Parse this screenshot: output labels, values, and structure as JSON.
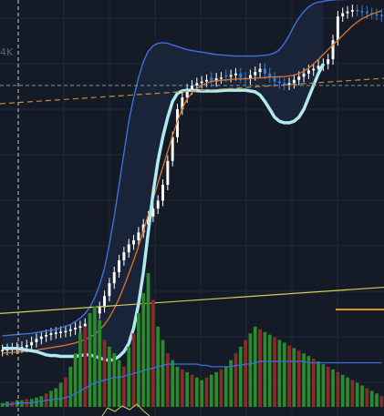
{
  "chart_data": {
    "type": "candlestick",
    "grid": true,
    "colors": {
      "background": "#141a26",
      "grid": "#222a38",
      "candle_up": "#ffffff",
      "candle_down": "#3a7bd5",
      "bollinger_upper": "#3f6fe0",
      "bollinger_fill": "#1d2a40",
      "moving_average": "#e0752a",
      "dashed_level": "#c98a2e",
      "price_line": "#d8cc5a",
      "lower_envelope": "#aeeaf0",
      "volume_up": "#2b8a2b",
      "volume_down": "#8a2b2b",
      "volume_ma": "#3a6fe0",
      "crosshair": "#c8c8c8",
      "tag": "#d9962a"
    },
    "y_axis_tick_labels": [
      "4K"
    ],
    "y_range": [
      -100,
      4380
    ],
    "candles": {
      "close": [
        20,
        30,
        40,
        50,
        60,
        80,
        120,
        160,
        190,
        210,
        230,
        240,
        250,
        260,
        280,
        300,
        320,
        350,
        400,
        480,
        560,
        700,
        860,
        1000,
        1150,
        1250,
        1350,
        1400,
        1500,
        1600,
        1700,
        1800,
        1900,
        2100,
        2400,
        2700,
        3050,
        3200,
        3300,
        3350,
        3380,
        3400,
        3420,
        3400,
        3440,
        3450,
        3460,
        3480,
        3500,
        3450,
        3430,
        3480,
        3520,
        3560,
        3500,
        3450,
        3400,
        3380,
        3360,
        3380,
        3420,
        3460,
        3500,
        3540,
        3560,
        3600,
        3620,
        3680,
        3920,
        4220,
        4260,
        4280,
        4300,
        4290,
        4280,
        4260,
        4250,
        4240,
        4220
      ],
      "open": [
        10,
        20,
        30,
        40,
        50,
        60,
        80,
        120,
        160,
        190,
        210,
        230,
        240,
        250,
        260,
        280,
        300,
        320,
        350,
        400,
        480,
        560,
        700,
        860,
        1000,
        1150,
        1250,
        1350,
        1400,
        1500,
        1600,
        1700,
        1800,
        1900,
        2100,
        2400,
        2700,
        3050,
        3200,
        3300,
        3350,
        3380,
        3400,
        3450,
        3400,
        3440,
        3480,
        3460,
        3480,
        3500,
        3450,
        3430,
        3480,
        3520,
        3560,
        3500,
        3450,
        3400,
        3380,
        3360,
        3380,
        3420,
        3460,
        3500,
        3540,
        3560,
        3600,
        3620,
        3680,
        3920,
        4220,
        4260,
        4280,
        4300,
        4290,
        4280,
        4260,
        4250,
        4240
      ]
    },
    "bollinger_upper": [
      200,
      205,
      210,
      215,
      220,
      225,
      230,
      240,
      250,
      260,
      270,
      280,
      300,
      320,
      340,
      380,
      420,
      480,
      560,
      680,
      840,
      1050,
      1350,
      1700,
      2100,
      2500,
      2900,
      3200,
      3450,
      3650,
      3780,
      3850,
      3880,
      3890,
      3880,
      3860,
      3840,
      3820,
      3800,
      3790,
      3780,
      3770,
      3760,
      3750,
      3740,
      3735,
      3730,
      3725,
      3720,
      3720,
      3720,
      3720,
      3720,
      3725,
      3730,
      3740,
      3760,
      3800,
      3880,
      3980,
      4100,
      4200,
      4280,
      4340,
      4380,
      4400,
      4410,
      4420,
      4425,
      4430,
      4432,
      4434,
      4436,
      4438,
      4440,
      4440,
      4440,
      4440,
      4440
    ],
    "moving_average": [
      -20,
      -15,
      -10,
      -5,
      0,
      5,
      10,
      20,
      30,
      40,
      50,
      60,
      70,
      80,
      95,
      110,
      130,
      150,
      180,
      220,
      270,
      340,
      430,
      540,
      670,
      820,
      980,
      1150,
      1330,
      1520,
      1720,
      1920,
      2120,
      2320,
      2520,
      2720,
      2900,
      3060,
      3180,
      3260,
      3310,
      3350,
      3380,
      3400,
      3410,
      3415,
      3420,
      3425,
      3430,
      3432,
      3434,
      3436,
      3440,
      3445,
      3450,
      3455,
      3458,
      3460,
      3462,
      3470,
      3480,
      3500,
      3530,
      3570,
      3620,
      3680,
      3740,
      3800,
      3860,
      3920,
      3980,
      4040,
      4100,
      4150,
      4190,
      4220,
      4250,
      4270,
      4290
    ],
    "lower_envelope": [
      40,
      40,
      40,
      40,
      30,
      20,
      10,
      0,
      -20,
      -40,
      -50,
      -50,
      -60,
      -60,
      -60,
      -60,
      -50,
      -40,
      -40,
      -60,
      -80,
      -100,
      -110,
      -100,
      -60,
      0,
      100,
      300,
      600,
      1000,
      1500,
      2000,
      2400,
      2700,
      2950,
      3150,
      3250,
      3280,
      3290,
      3290,
      3285,
      3280,
      3280,
      3280,
      3280,
      3285,
      3290,
      3290,
      3290,
      3290,
      3290,
      3280,
      3270,
      3230,
      3150,
      3050,
      2950,
      2900,
      2880,
      2880,
      2900,
      2950,
      3050,
      3200,
      3350,
      3500,
      3620
    ],
    "dashed_level": {
      "start": 3120,
      "end": 3440
    },
    "dashed_level_tag": 3350,
    "price_line": {
      "start": 480,
      "end": 810
    },
    "volume": {
      "values": [
        3,
        4,
        4,
        5,
        5,
        6,
        6,
        7,
        8,
        10,
        12,
        14,
        18,
        22,
        30,
        40,
        55,
        60,
        70,
        75,
        65,
        50,
        45,
        40,
        35,
        30,
        45,
        55,
        70,
        85,
        100,
        80,
        60,
        50,
        40,
        35,
        30,
        28,
        26,
        24,
        22,
        20,
        22,
        24,
        26,
        28,
        30,
        35,
        40,
        45,
        50,
        55,
        60,
        58,
        56,
        54,
        52,
        50,
        48,
        46,
        44,
        42,
        40,
        38,
        36,
        34,
        32,
        30,
        28,
        26,
        24,
        22,
        20,
        18,
        16,
        14,
        12,
        10,
        8
      ],
      "up": [
        true,
        true,
        false,
        true,
        true,
        false,
        true,
        true,
        true,
        false,
        true,
        true,
        true,
        false,
        true,
        true,
        true,
        false,
        true,
        true,
        true,
        false,
        true,
        true,
        true,
        false,
        true,
        false,
        true,
        true,
        true,
        false,
        true,
        true,
        false,
        true,
        true,
        false,
        true,
        false,
        true,
        true,
        false,
        true,
        true,
        false,
        true,
        true,
        false,
        true,
        false,
        true,
        true,
        false,
        true,
        true,
        false,
        true,
        true,
        false,
        true,
        false,
        true,
        true,
        false,
        true,
        true,
        false,
        true,
        false,
        true,
        true,
        false,
        true,
        true,
        false,
        true,
        true,
        false
      ],
      "ma": [
        2,
        2,
        2,
        3,
        3,
        3,
        3,
        4,
        4,
        5,
        5,
        6,
        6,
        7,
        8,
        10,
        12,
        14,
        16,
        18,
        19,
        20,
        21,
        22,
        22,
        23,
        24,
        25,
        26,
        27,
        28,
        29,
        30,
        31,
        32,
        32,
        32,
        32,
        32,
        32,
        32,
        31,
        31,
        30,
        30,
        30,
        30,
        30,
        31,
        31,
        32,
        32,
        33,
        34,
        34,
        34,
        34,
        34,
        34,
        34,
        34,
        34,
        34,
        33,
        33,
        33,
        33,
        33,
        33,
        33,
        33,
        33,
        33,
        33,
        33,
        33,
        33,
        33,
        33
      ],
      "max": 100
    }
  }
}
